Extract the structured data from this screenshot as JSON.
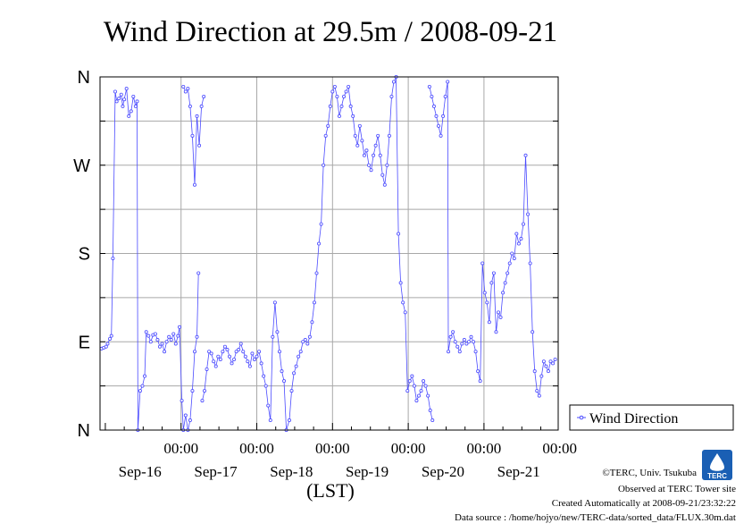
{
  "chart_data": {
    "type": "line",
    "title": "Wind Direction at 29.5m / 2008-09-21",
    "xlabel": "(LST)",
    "ylabel": "",
    "x_unit": "days",
    "xlim": [
      0,
      6.05
    ],
    "ylim": [
      0,
      360
    ],
    "y_ticks": [
      {
        "value": 0,
        "label": "N"
      },
      {
        "value": 90,
        "label": "E"
      },
      {
        "value": 180,
        "label": "S"
      },
      {
        "value": 270,
        "label": "W"
      },
      {
        "value": 360,
        "label": "N"
      }
    ],
    "x_ticks": [
      {
        "value": 1.07,
        "time": "00:00",
        "date": "Sep-16"
      },
      {
        "value": 2.07,
        "time": "00:00",
        "date": "Sep-17"
      },
      {
        "value": 3.07,
        "time": "00:00",
        "date": "Sep-18"
      },
      {
        "value": 4.07,
        "time": "00:00",
        "date": "Sep-19"
      },
      {
        "value": 5.07,
        "time": "00:00",
        "date": "Sep-20"
      },
      {
        "value": 6.07,
        "time": "00:00",
        "date": "Sep-21"
      }
    ],
    "grid": true,
    "legend_position": "right",
    "series": [
      {
        "name": "Wind Direction",
        "color": "#4b4bff",
        "points": [
          [
            0.02,
            83
          ],
          [
            0.05,
            84
          ],
          [
            0.08,
            85
          ],
          [
            0.1,
            88
          ],
          [
            0.13,
            93
          ],
          [
            0.15,
            96
          ],
          [
            0.17,
            175
          ],
          [
            0.2,
            345
          ],
          [
            0.22,
            335
          ],
          [
            0.25,
            338
          ],
          [
            0.28,
            342
          ],
          [
            0.3,
            330
          ],
          [
            0.32,
            337
          ],
          [
            0.35,
            348
          ],
          [
            0.38,
            320
          ],
          [
            0.41,
            325
          ],
          [
            0.44,
            340
          ],
          [
            0.47,
            330
          ],
          [
            0.49,
            335
          ],
          [
            0.5,
            0
          ],
          [
            0.53,
            40
          ],
          [
            0.56,
            45
          ],
          [
            0.59,
            55
          ],
          [
            0.61,
            100
          ],
          [
            0.64,
            96
          ],
          [
            0.67,
            90
          ],
          [
            0.7,
            97
          ],
          [
            0.73,
            98
          ],
          [
            0.76,
            92
          ],
          [
            0.79,
            85
          ],
          [
            0.82,
            88
          ],
          [
            0.85,
            80
          ],
          [
            0.88,
            90
          ],
          [
            0.91,
            95
          ],
          [
            0.94,
            92
          ],
          [
            0.97,
            98
          ],
          [
            1.0,
            88
          ],
          [
            1.03,
            96
          ],
          [
            1.05,
            105
          ],
          [
            1.08,
            30
          ],
          [
            1.1,
            0
          ],
          [
            1.13,
            15
          ],
          [
            1.16,
            0
          ],
          [
            1.19,
            10
          ],
          [
            1.22,
            40
          ],
          [
            1.25,
            80
          ],
          [
            1.28,
            95
          ],
          [
            1.3,
            160
          ],
          [
            1.1,
            350
          ],
          [
            1.13,
            345
          ],
          [
            1.16,
            348
          ],
          [
            1.19,
            330
          ],
          [
            1.22,
            300
          ],
          [
            1.25,
            250
          ],
          [
            1.28,
            320
          ],
          [
            1.31,
            290
          ],
          [
            1.34,
            330
          ],
          [
            1.37,
            340
          ],
          [
            1.35,
            30
          ],
          [
            1.38,
            40
          ],
          [
            1.41,
            62
          ],
          [
            1.44,
            80
          ],
          [
            1.47,
            78
          ],
          [
            1.5,
            70
          ],
          [
            1.53,
            65
          ],
          [
            1.56,
            75
          ],
          [
            1.59,
            72
          ],
          [
            1.62,
            80
          ],
          [
            1.65,
            85
          ],
          [
            1.68,
            82
          ],
          [
            1.71,
            75
          ],
          [
            1.74,
            68
          ],
          [
            1.77,
            72
          ],
          [
            1.8,
            80
          ],
          [
            1.83,
            82
          ],
          [
            1.86,
            88
          ],
          [
            1.89,
            80
          ],
          [
            1.92,
            75
          ],
          [
            1.95,
            70
          ],
          [
            1.98,
            65
          ],
          [
            2.01,
            78
          ],
          [
            2.04,
            72
          ],
          [
            2.07,
            75
          ],
          [
            2.1,
            80
          ],
          [
            2.13,
            68
          ],
          [
            2.16,
            55
          ],
          [
            2.19,
            45
          ],
          [
            2.22,
            25
          ],
          [
            2.25,
            10
          ],
          [
            2.28,
            95
          ],
          [
            2.31,
            130
          ],
          [
            2.34,
            100
          ],
          [
            2.37,
            80
          ],
          [
            2.4,
            60
          ],
          [
            2.43,
            50
          ],
          [
            2.46,
            0
          ],
          [
            2.5,
            10
          ],
          [
            2.53,
            40
          ],
          [
            2.56,
            58
          ],
          [
            2.59,
            65
          ],
          [
            2.62,
            75
          ],
          [
            2.65,
            80
          ],
          [
            2.68,
            90
          ],
          [
            2.71,
            92
          ],
          [
            2.74,
            88
          ],
          [
            2.77,
            95
          ],
          [
            2.8,
            110
          ],
          [
            2.83,
            130
          ],
          [
            2.86,
            160
          ],
          [
            2.89,
            190
          ],
          [
            2.92,
            210
          ],
          [
            2.95,
            270
          ],
          [
            2.98,
            300
          ],
          [
            3.01,
            310
          ],
          [
            3.04,
            330
          ],
          [
            3.07,
            345
          ],
          [
            3.1,
            350
          ],
          [
            3.13,
            340
          ],
          [
            3.16,
            320
          ],
          [
            3.19,
            330
          ],
          [
            3.22,
            340
          ],
          [
            3.25,
            345
          ],
          [
            3.28,
            350
          ],
          [
            3.31,
            330
          ],
          [
            3.34,
            320
          ],
          [
            3.37,
            300
          ],
          [
            3.4,
            290
          ],
          [
            3.43,
            310
          ],
          [
            3.46,
            295
          ],
          [
            3.49,
            280
          ],
          [
            3.52,
            285
          ],
          [
            3.55,
            270
          ],
          [
            3.58,
            265
          ],
          [
            3.61,
            280
          ],
          [
            3.64,
            290
          ],
          [
            3.67,
            300
          ],
          [
            3.7,
            280
          ],
          [
            3.73,
            260
          ],
          [
            3.76,
            250
          ],
          [
            3.79,
            270
          ],
          [
            3.82,
            300
          ],
          [
            3.85,
            340
          ],
          [
            3.88,
            355
          ],
          [
            3.91,
            360
          ],
          [
            3.94,
            200
          ],
          [
            3.97,
            150
          ],
          [
            4.0,
            130
          ],
          [
            4.03,
            120
          ],
          [
            4.06,
            40
          ],
          [
            4.09,
            50
          ],
          [
            4.12,
            55
          ],
          [
            4.15,
            45
          ],
          [
            4.18,
            30
          ],
          [
            4.21,
            35
          ],
          [
            4.24,
            40
          ],
          [
            4.27,
            50
          ],
          [
            4.3,
            45
          ],
          [
            4.33,
            35
          ],
          [
            4.36,
            20
          ],
          [
            4.39,
            10
          ],
          [
            4.35,
            350
          ],
          [
            4.38,
            340
          ],
          [
            4.41,
            330
          ],
          [
            4.44,
            320
          ],
          [
            4.47,
            310
          ],
          [
            4.5,
            300
          ],
          [
            4.53,
            320
          ],
          [
            4.56,
            340
          ],
          [
            4.59,
            355
          ],
          [
            4.6,
            80
          ],
          [
            4.63,
            95
          ],
          [
            4.66,
            100
          ],
          [
            4.69,
            90
          ],
          [
            4.72,
            85
          ],
          [
            4.75,
            80
          ],
          [
            4.78,
            88
          ],
          [
            4.81,
            92
          ],
          [
            4.84,
            88
          ],
          [
            4.87,
            90
          ],
          [
            4.9,
            95
          ],
          [
            4.93,
            90
          ],
          [
            4.96,
            80
          ],
          [
            4.99,
            60
          ],
          [
            5.02,
            50
          ],
          [
            5.05,
            170
          ],
          [
            5.08,
            140
          ],
          [
            5.11,
            130
          ],
          [
            5.14,
            110
          ],
          [
            5.17,
            150
          ],
          [
            5.2,
            160
          ],
          [
            5.23,
            100
          ],
          [
            5.26,
            120
          ],
          [
            5.29,
            115
          ],
          [
            5.32,
            140
          ],
          [
            5.35,
            150
          ],
          [
            5.38,
            160
          ],
          [
            5.41,
            170
          ],
          [
            5.44,
            180
          ],
          [
            5.47,
            175
          ],
          [
            5.5,
            200
          ],
          [
            5.53,
            190
          ],
          [
            5.56,
            195
          ],
          [
            5.59,
            210
          ],
          [
            5.62,
            280
          ],
          [
            5.65,
            220
          ],
          [
            5.68,
            170
          ],
          [
            5.71,
            100
          ],
          [
            5.74,
            60
          ],
          [
            5.77,
            40
          ],
          [
            5.8,
            35
          ],
          [
            5.83,
            55
          ],
          [
            5.86,
            70
          ],
          [
            5.89,
            65
          ],
          [
            5.92,
            60
          ],
          [
            5.95,
            70
          ],
          [
            5.98,
            68
          ],
          [
            6.01,
            72
          ]
        ]
      }
    ]
  },
  "legend": {
    "label": "Wind Direction"
  },
  "footer": {
    "line1": "©TERC, Univ. Tsukuba",
    "line2": "Observed at TERC Tower site",
    "line3": "Created Automatically at 2008-09-21/23:32:22",
    "line4": "Data source : /home/hojyo/new/TERC-data/sorted_data/FLUX.30m.dat"
  },
  "logo": {
    "text": "TERC"
  }
}
